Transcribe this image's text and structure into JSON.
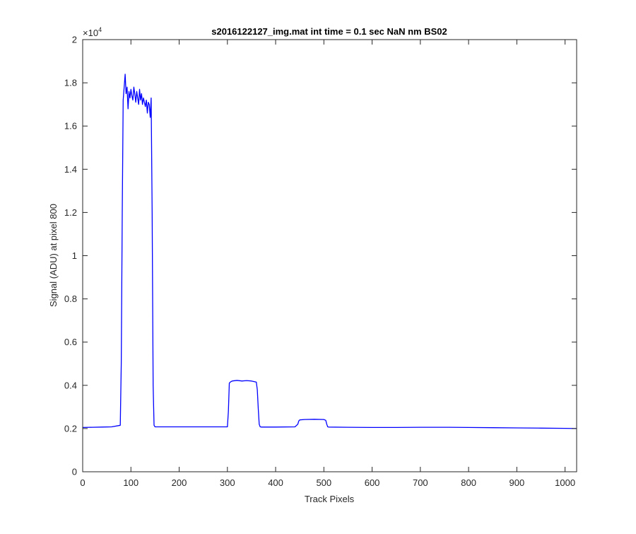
{
  "chart_data": {
    "type": "line",
    "title": "s2016122127_img.mat int time = 0.1 sec  NaN nm BS02",
    "xlabel": "Track Pixels",
    "ylabel": "Signal (ADU) at pixel 800",
    "xlim": [
      0,
      1024
    ],
    "ylim": [
      0,
      20000
    ],
    "y_exponent_label": "×10",
    "y_exponent_power": "4",
    "xticks": [
      0,
      100,
      200,
      300,
      400,
      500,
      600,
      700,
      800,
      900,
      1000
    ],
    "xtick_labels": [
      "0",
      "100",
      "200",
      "300",
      "400",
      "500",
      "600",
      "700",
      "800",
      "900",
      "1000"
    ],
    "yticks": [
      0,
      2000,
      4000,
      6000,
      8000,
      10000,
      12000,
      14000,
      16000,
      18000,
      20000
    ],
    "ytick_labels": [
      "0",
      "0.2",
      "0.4",
      "0.6",
      "0.8",
      "1",
      "1.2",
      "1.4",
      "1.6",
      "1.8",
      "2"
    ],
    "grid": false,
    "series": [
      {
        "color": "#0000ff",
        "x": [
          0,
          20,
          40,
          60,
          78,
          80,
          82,
          84,
          86,
          88,
          90,
          92,
          94,
          96,
          98,
          100,
          102,
          104,
          106,
          108,
          110,
          112,
          114,
          116,
          118,
          120,
          122,
          124,
          126,
          128,
          130,
          132,
          134,
          136,
          138,
          140,
          142,
          144,
          146,
          148,
          150,
          200,
          250,
          300,
          302,
          304,
          306,
          310,
          320,
          330,
          340,
          350,
          360,
          362,
          364,
          366,
          368,
          370,
          400,
          440,
          446,
          448,
          450,
          460,
          480,
          500,
          504,
          506,
          508,
          510,
          550,
          600,
          650,
          700,
          750,
          800,
          850,
          900,
          950,
          1000,
          1024
        ],
        "y": [
          2050,
          2060,
          2070,
          2080,
          2150,
          5000,
          12000,
          17200,
          17800,
          18400,
          17500,
          17800,
          16800,
          17600,
          17300,
          17700,
          17400,
          17200,
          17800,
          17500,
          17100,
          17600,
          17300,
          17000,
          17700,
          17200,
          17500,
          17000,
          17300,
          17100,
          16900,
          17200,
          16600,
          17100,
          17000,
          16400,
          17300,
          12000,
          4000,
          2150,
          2080,
          2080,
          2080,
          2080,
          2800,
          4100,
          4150,
          4200,
          4230,
          4200,
          4220,
          4200,
          4150,
          3800,
          2900,
          2200,
          2080,
          2070,
          2070,
          2080,
          2200,
          2350,
          2400,
          2420,
          2430,
          2420,
          2380,
          2200,
          2080,
          2070,
          2060,
          2050,
          2050,
          2060,
          2060,
          2050,
          2040,
          2030,
          2020,
          2010,
          2000
        ]
      }
    ]
  }
}
